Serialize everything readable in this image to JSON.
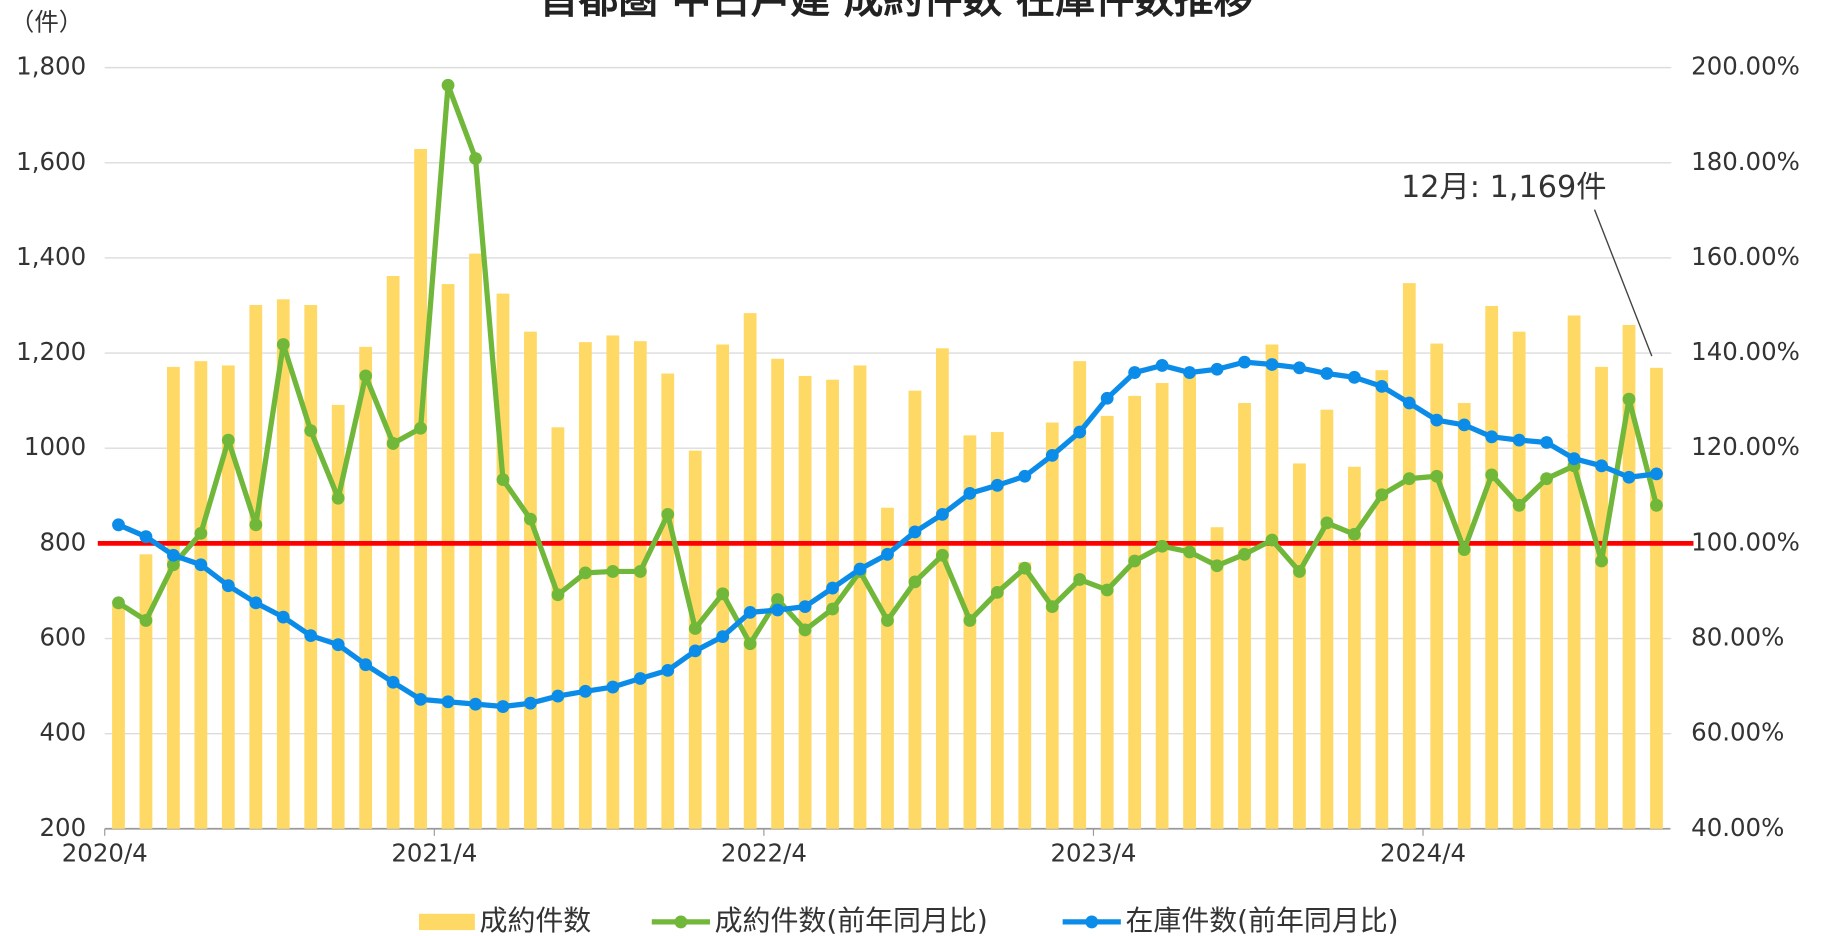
{
  "chart_data": {
    "type": "bar_line",
    "title": "首都圏 中古戸建 成約件数 在庫件数推移",
    "y_unit_label": "（件）",
    "annotation": "12月: 1,169件",
    "categories": [
      "2020/4",
      null,
      null,
      null,
      null,
      null,
      null,
      null,
      null,
      null,
      null,
      null,
      "2021/4",
      null,
      null,
      null,
      null,
      null,
      null,
      null,
      null,
      null,
      null,
      null,
      "2022/4",
      null,
      null,
      null,
      null,
      null,
      null,
      null,
      null,
      null,
      null,
      null,
      "2023/4",
      null,
      null,
      null,
      null,
      null,
      null,
      null,
      null,
      null,
      null,
      null,
      "2024/4",
      null,
      null,
      null,
      null,
      null,
      null,
      null,
      null
    ],
    "series": [
      {
        "name": "成約件数",
        "type": "bar",
        "axis": "y",
        "color": "#FFD966",
        "values": [
          670,
          777,
          1171,
          1183,
          1174,
          1301,
          1313,
          1301,
          1091,
          1213,
          1362,
          1629,
          1345,
          1409,
          1325,
          1245,
          1044,
          1223,
          1237,
          1225,
          1157,
          995,
          1218,
          1284,
          1188,
          1152,
          1144,
          1174,
          875,
          1121,
          1210,
          1027,
          1034,
          760,
          1054,
          1183,
          1068,
          1110,
          1137,
          1159,
          834,
          1095,
          1218,
          968,
          1081,
          961,
          1164,
          1347,
          1220,
          1095,
          1299,
          1245,
          930,
          1279,
          1171,
          1259,
          1169
        ]
      },
      {
        "name": "成約件数(前年同月比)",
        "type": "line",
        "axis": "y2",
        "color": "#70B73A",
        "values": [
          87.5,
          83.8,
          95.5,
          102.1,
          121.7,
          103.9,
          141.8,
          123.7,
          109.5,
          135.2,
          121.0,
          124.2,
          196.3,
          180.9,
          113.4,
          105.1,
          89.2,
          93.8,
          94.1,
          94.1,
          106.1,
          82.1,
          89.4,
          78.9,
          88.2,
          81.8,
          86.2,
          94.1,
          83.8,
          91.9,
          97.5,
          83.8,
          89.7,
          94.8,
          86.7,
          92.4,
          90.2,
          96.3,
          99.4,
          98.2,
          95.3,
          97.7,
          100.7,
          94.1,
          104.3,
          101.9,
          110.2,
          113.6,
          114.1,
          98.7,
          114.4,
          108.0,
          113.6,
          116.3,
          96.3,
          130.3,
          108.0
        ]
      },
      {
        "name": "在庫件数(前年同月比)",
        "type": "line",
        "axis": "y2",
        "color": "#0C8CE9",
        "values": [
          103.9,
          101.4,
          97.5,
          95.5,
          91.1,
          87.5,
          84.5,
          80.6,
          78.7,
          74.5,
          70.8,
          67.2,
          66.7,
          66.2,
          65.7,
          66.4,
          67.9,
          68.9,
          69.8,
          71.6,
          73.3,
          77.4,
          80.4,
          85.5,
          86.0,
          86.7,
          90.6,
          94.6,
          97.7,
          102.4,
          106.1,
          110.5,
          112.2,
          114.1,
          118.5,
          123.4,
          130.5,
          135.9,
          137.4,
          135.9,
          136.6,
          138.1,
          137.6,
          136.9,
          135.7,
          134.9,
          133.0,
          129.5,
          125.9,
          124.9,
          122.4,
          121.7,
          121.2,
          117.8,
          116.3,
          113.9,
          114.6
        ]
      }
    ],
    "reference_line": {
      "value": 100,
      "axis": "y2",
      "color": "#FF0000"
    },
    "ylim": [
      200,
      1800
    ],
    "yticks": [
      200,
      400,
      600,
      800,
      1000,
      {
        "value": 1200,
        "label": "1,200"
      },
      {
        "value": 1400,
        "label": "1,400"
      },
      {
        "value": 1600,
        "label": "1,600"
      },
      {
        "value": 1800,
        "label": "1,800"
      }
    ],
    "y2lim": [
      40,
      200
    ],
    "y2ticks": [
      {
        "value": 40,
        "label": "40.00%"
      },
      {
        "value": 60,
        "label": "60.00%"
      },
      {
        "value": 80,
        "label": "80.00%"
      },
      {
        "value": 100,
        "label": "100.00%"
      },
      {
        "value": 120,
        "label": "120.00%"
      },
      {
        "value": 140,
        "label": "140.00%"
      },
      {
        "value": 160,
        "label": "160.00%"
      },
      {
        "value": 180,
        "label": "180.00%"
      },
      {
        "value": 200,
        "label": "200.00%"
      }
    ],
    "grid": true,
    "legend": "bottom"
  }
}
